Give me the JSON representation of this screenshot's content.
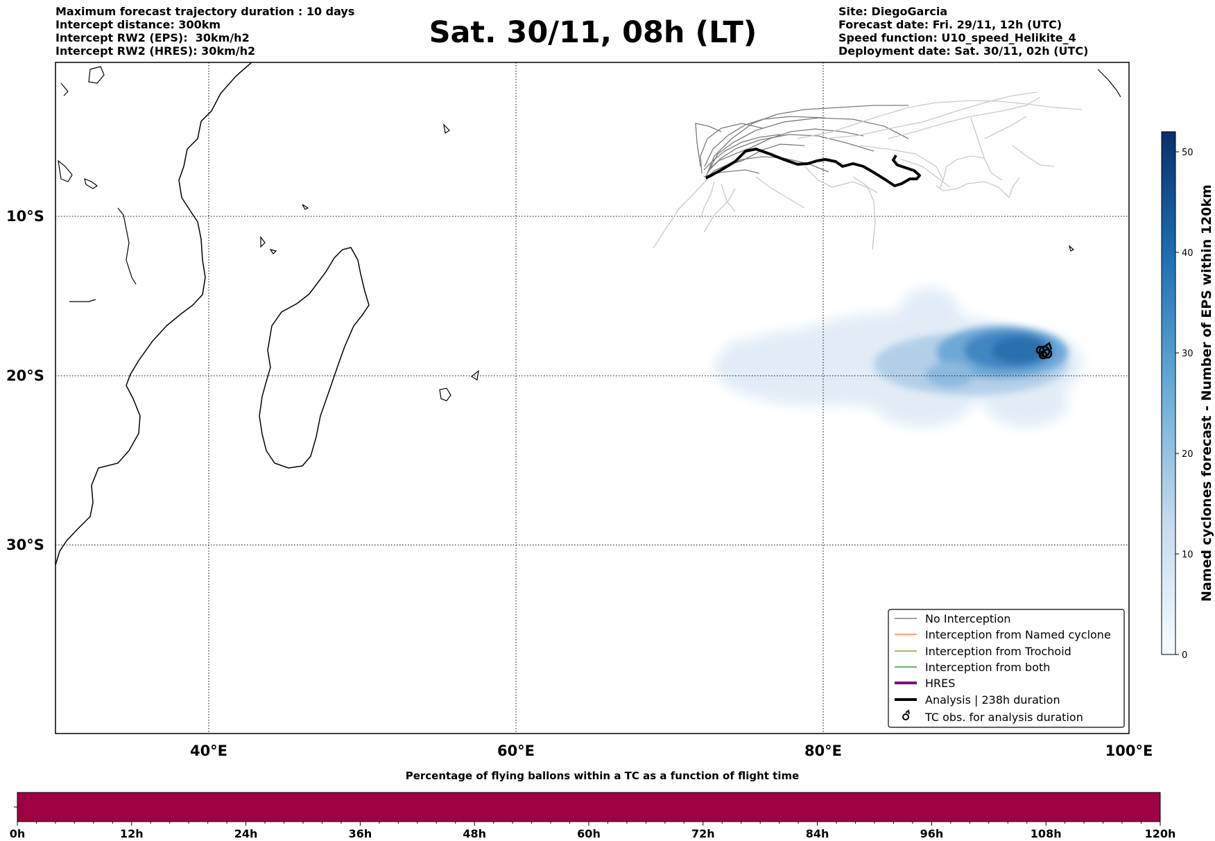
{
  "header": {
    "left_lines": [
      "Maximum forecast trajectory duration : 10 days",
      "Intercept distance: 300km",
      "Intercept RW2 (EPS):  30km/h2",
      "Intercept RW2 (HRES): 30km/h2"
    ],
    "title": "Sat. 30/11, 08h (LT)",
    "right_lines": [
      "Site: DiegoGarcia",
      "Forecast date: Fri. 29/11, 12h (UTC)",
      "Speed function: U10_speed_Helikite_4",
      "Deployment date: Sat. 30/11, 02h (UTC)"
    ]
  },
  "map": {
    "lon_range": [
      30,
      100
    ],
    "lat_range": [
      -42,
      0
    ],
    "lat_labels": [
      "10°S",
      "20°S",
      "30°S"
    ],
    "lat_values": [
      -10,
      -20,
      -30
    ],
    "lon_labels": [
      "40°E",
      "60°E",
      "80°E",
      "100°E"
    ],
    "lon_values": [
      40,
      60,
      80,
      100
    ],
    "grid": "dotted"
  },
  "legend": {
    "items": [
      {
        "label": "No Interception",
        "color": "#808080",
        "style": "thin-line",
        "icon": "line-icon"
      },
      {
        "label": "Interception from Named cyclone",
        "color": "#ff7f50",
        "style": "thin-line",
        "icon": "line-icon"
      },
      {
        "label": "Interception from Trochoid",
        "color": "#9a9a3a",
        "style": "thin-line",
        "icon": "line-icon"
      },
      {
        "label": "Interception from both",
        "color": "#2ca02c",
        "style": "thin-line",
        "icon": "line-icon"
      },
      {
        "label": "HRES",
        "color": "#800080",
        "style": "thick-line",
        "icon": "line-icon"
      },
      {
        "label": "Analysis | 238h duration",
        "color": "#000000",
        "style": "thick-line",
        "icon": "line-icon"
      },
      {
        "label": "TC obs. for analysis duration",
        "color": "#000000",
        "style": "marker",
        "icon": "cyclone-symbol-icon"
      }
    ]
  },
  "colorbar": {
    "label": "Named cyclones forecast - Number of EPS within 120km",
    "min": 0,
    "max": 52,
    "ticks": [
      0,
      10,
      20,
      30,
      40,
      50
    ],
    "colormap": [
      "#f7fbff",
      "#c6dbef",
      "#6baed6",
      "#2171b5",
      "#08306b"
    ]
  },
  "flight_bar": {
    "title": "Percentage of flying ballons within a TC as a function of flight time",
    "color": "#9e0142",
    "ticks": [
      "0h",
      "12h",
      "24h",
      "36h",
      "48h",
      "60h",
      "72h",
      "84h",
      "96h",
      "108h",
      "120h"
    ]
  }
}
